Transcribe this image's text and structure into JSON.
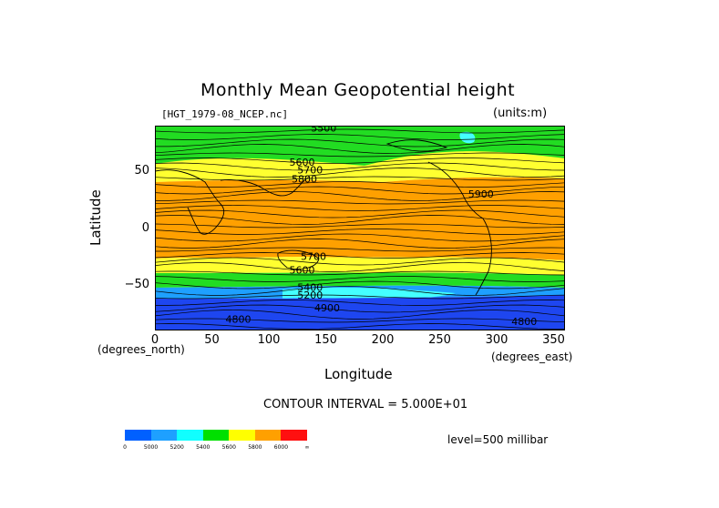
{
  "title": "Monthly Mean Geopotential height",
  "file_label": "[HGT_1979-08_NCEP.nc]",
  "units_label": "(units:m)",
  "y_axis": {
    "label": "Latitude",
    "ticks": [
      {
        "value": 50,
        "label": "50"
      },
      {
        "value": 0,
        "label": "0"
      },
      {
        "value": -50,
        "label": "−50"
      }
    ],
    "unit": "(degrees_north)"
  },
  "x_axis": {
    "label": "Longitude",
    "ticks": [
      {
        "value": 0,
        "label": "0"
      },
      {
        "value": 50,
        "label": "50"
      },
      {
        "value": 100,
        "label": "100"
      },
      {
        "value": 150,
        "label": "150"
      },
      {
        "value": 200,
        "label": "200"
      },
      {
        "value": 250,
        "label": "250"
      },
      {
        "value": 300,
        "label": "300"
      },
      {
        "value": 350,
        "label": "350"
      }
    ],
    "unit": "(degrees_east)"
  },
  "contour_interval": "CONTOUR INTERVAL = 5.000E+01",
  "level": "level=500 millibar",
  "contour_labels": [
    {
      "text": "5500",
      "lon": 137,
      "lat": 85
    },
    {
      "text": "5600",
      "lon": 118,
      "lat": 55
    },
    {
      "text": "5700",
      "lon": 125,
      "lat": 48
    },
    {
      "text": "5800",
      "lon": 120,
      "lat": 40
    },
    {
      "text": "5900",
      "lon": 275,
      "lat": 27
    },
    {
      "text": "5700",
      "lon": 128,
      "lat": -28
    },
    {
      "text": "5600",
      "lon": 118,
      "lat": -40
    },
    {
      "text": "5400",
      "lon": 125,
      "lat": -55
    },
    {
      "text": "5200",
      "lon": 125,
      "lat": -62
    },
    {
      "text": "4900",
      "lon": 140,
      "lat": -73
    },
    {
      "text": "4800",
      "lon": 62,
      "lat": -83
    },
    {
      "text": "4800",
      "lon": 313,
      "lat": -85
    }
  ],
  "colorbar": {
    "colors": [
      "#0060ff",
      "#1ea0ff",
      "#10ffff",
      "#00e000",
      "#ffff00",
      "#ffa000",
      "#ff1010"
    ],
    "labels": [
      "0",
      "5000",
      "5200",
      "5400",
      "5600",
      "5800",
      "6000",
      "∞"
    ]
  },
  "map_colors": {
    "green": "#22dc22",
    "yellow": "#ffff30",
    "orange": "#ffa000",
    "cyan": "#44ffff",
    "blue": "#1e46f0",
    "ltblue": "#1ea0ff"
  }
}
